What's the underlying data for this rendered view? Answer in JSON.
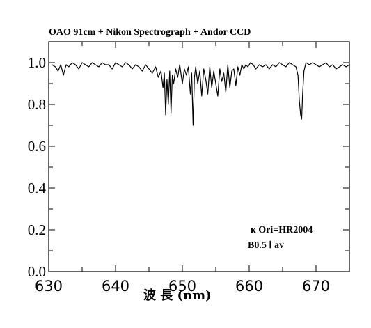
{
  "chart_data": {
    "type": "line",
    "title": "OAO 91cm + Nikon Spectrograph + Andor CCD",
    "xlabel": "波 長 (nm)",
    "ylabel": "",
    "xlim": [
      630,
      675
    ],
    "ylim": [
      0.0,
      1.1
    ],
    "xticks": [
      "630",
      "640",
      "650",
      "660",
      "670"
    ],
    "yticks": [
      "0.0",
      "0.2",
      "0.4",
      "0.6",
      "0.8",
      "1.0"
    ],
    "annotations": [
      "κ Ori=HR2004",
      "B0.5 Ⅰ av"
    ],
    "grid": false,
    "series": [
      {
        "values_x": [
          630.5,
          631.0,
          631.4,
          631.8,
          632.2,
          632.6,
          633.0,
          633.5,
          634.0,
          634.5,
          635.0,
          635.5,
          636.0,
          636.5,
          637.0,
          637.5,
          638.0,
          638.5,
          639.0,
          639.5,
          640.0,
          640.5,
          641.0,
          641.5,
          642.0,
          642.5,
          643.0,
          643.5,
          644.0,
          644.5,
          645.0,
          645.5,
          646.0,
          646.4,
          646.8,
          647.1,
          647.3,
          647.5,
          647.7,
          647.9,
          648.1,
          648.3,
          648.5,
          648.7,
          649.0,
          649.3,
          649.6,
          650.0,
          650.3,
          650.6,
          650.9,
          651.2,
          651.4,
          651.6,
          651.8,
          652.0,
          652.3,
          652.6,
          652.9,
          653.2,
          653.5,
          653.8,
          654.1,
          654.4,
          654.7,
          655.0,
          655.3,
          655.6,
          655.9,
          656.2,
          656.5,
          656.8,
          657.1,
          657.4,
          657.7,
          658.0,
          658.3,
          658.6,
          658.9,
          659.2,
          659.5,
          659.8,
          660.2,
          660.6,
          661.0,
          661.5,
          662.0,
          662.5,
          663.0,
          663.5,
          664.0,
          664.5,
          665.0,
          665.5,
          666.0,
          666.5,
          667.0,
          667.3,
          667.5,
          667.7,
          667.85,
          668.0,
          668.2,
          668.5,
          669.0,
          669.5,
          670.0,
          670.5,
          671.0,
          671.5,
          672.0,
          672.5,
          673.0,
          673.5,
          674.0,
          674.5,
          675.0
        ],
        "values_y": [
          0.99,
          0.98,
          0.96,
          0.99,
          0.94,
          0.99,
          0.98,
          1.0,
          0.99,
          0.97,
          1.0,
          0.99,
          0.98,
          1.0,
          0.99,
          0.98,
          1.0,
          0.99,
          0.99,
          0.97,
          1.0,
          0.99,
          0.98,
          1.0,
          0.99,
          0.97,
          0.99,
          0.98,
          0.96,
          0.99,
          0.97,
          0.95,
          0.98,
          0.93,
          0.96,
          0.88,
          0.95,
          0.75,
          0.92,
          0.8,
          0.96,
          0.76,
          0.94,
          0.9,
          0.97,
          0.93,
          0.99,
          0.9,
          0.97,
          0.94,
          0.98,
          0.85,
          0.95,
          0.7,
          0.93,
          0.98,
          0.9,
          0.96,
          0.84,
          0.97,
          0.92,
          0.85,
          0.98,
          0.88,
          0.96,
          0.9,
          0.84,
          0.97,
          0.91,
          0.95,
          0.86,
          0.99,
          0.88,
          0.96,
          0.97,
          0.89,
          0.98,
          0.94,
          0.99,
          0.97,
          0.99,
          0.98,
          1.0,
          0.99,
          0.97,
          0.99,
          0.98,
          0.99,
          0.97,
          0.99,
          0.98,
          1.0,
          0.99,
          0.98,
          1.0,
          0.99,
          0.98,
          0.94,
          0.82,
          0.75,
          0.73,
          0.85,
          0.96,
          1.0,
          0.99,
          1.0,
          0.99,
          0.98,
          0.99,
          1.0,
          0.98,
          0.99,
          0.97,
          0.98,
          0.99,
          0.98,
          0.99
        ]
      }
    ]
  }
}
